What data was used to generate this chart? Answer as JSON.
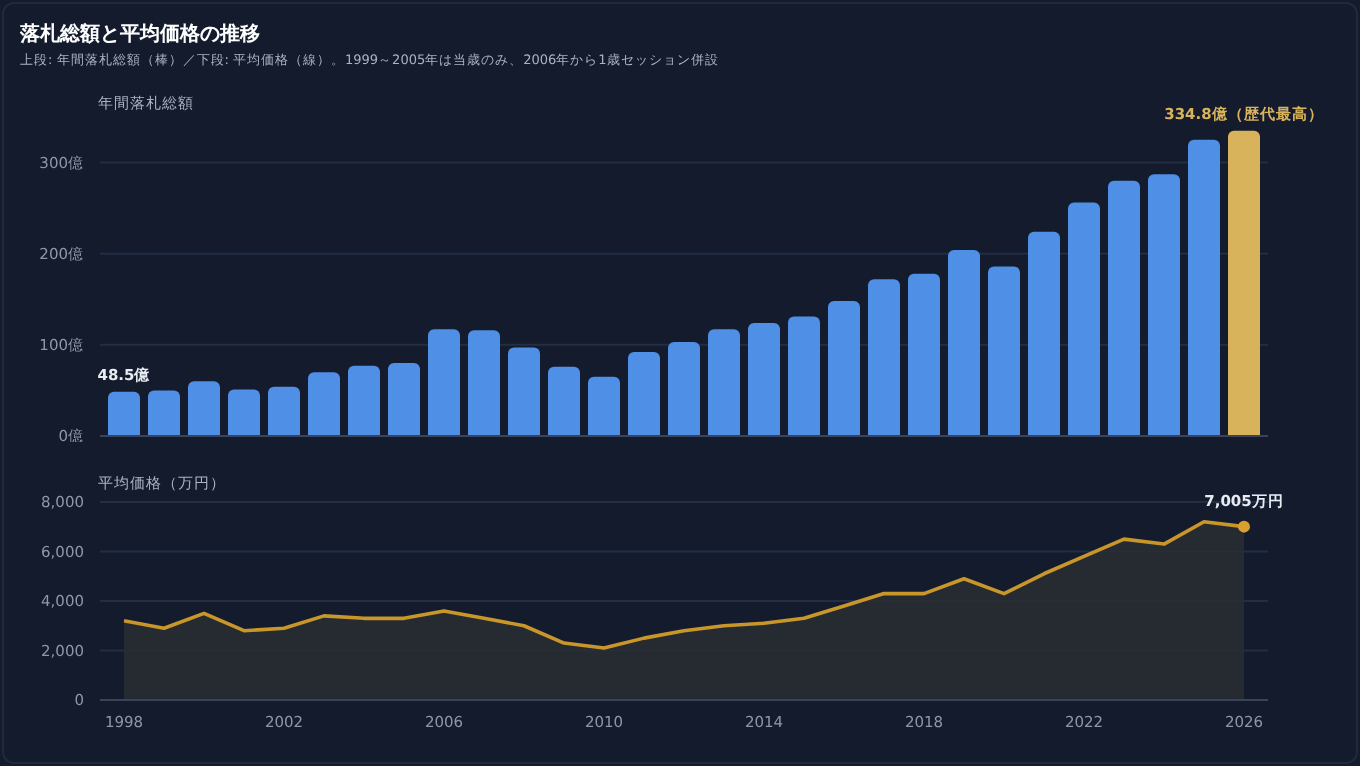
{
  "chart_data": [
    {
      "type": "bar",
      "title": "落札総額と平均価格の推移",
      "subtitle": "上段: 年間落札総額（棒）／下段: 平均価格（線）。1999～2005年は当歳のみ、2006年から1歳セッション併設",
      "ylabel": "年間落札総額",
      "x": [
        1998,
        1999,
        2000,
        2001,
        2002,
        2003,
        2004,
        2005,
        2006,
        2007,
        2008,
        2009,
        2010,
        2011,
        2012,
        2013,
        2014,
        2015,
        2016,
        2017,
        2018,
        2019,
        2020,
        2021,
        2022,
        2023,
        2024,
        2025,
        2026
      ],
      "series": [
        {
          "color": "#4f8fe6",
          "values": [
            48.5,
            50,
            60,
            51,
            54,
            70,
            77,
            80,
            117,
            116,
            97,
            76,
            65,
            92,
            103,
            117,
            124,
            131,
            148,
            172,
            178,
            204,
            186,
            224,
            256,
            280,
            287,
            325,
            334.8
          ],
          "colors": [
            "#4f8fe6",
            "#4f8fe6",
            "#4f8fe6",
            "#4f8fe6",
            "#4f8fe6",
            "#4f8fe6",
            "#4f8fe6",
            "#4f8fe6",
            "#4f8fe6",
            "#4f8fe6",
            "#4f8fe6",
            "#4f8fe6",
            "#4f8fe6",
            "#4f8fe6",
            "#4f8fe6",
            "#4f8fe6",
            "#4f8fe6",
            "#4f8fe6",
            "#4f8fe6",
            "#4f8fe6",
            "#4f8fe6",
            "#4f8fe6",
            "#4f8fe6",
            "#4f8fe6",
            "#4f8fe6",
            "#4f8fe6",
            "#4f8fe6",
            "#4f8fe6",
            "#d9b25c"
          ],
          "value_labels": [
            "48.5億",
            null,
            null,
            null,
            null,
            null,
            null,
            null,
            null,
            null,
            null,
            null,
            null,
            null,
            null,
            null,
            null,
            null,
            null,
            null,
            null,
            null,
            null,
            null,
            null,
            null,
            null,
            null,
            "334.8億（歴代最高）"
          ]
        }
      ],
      "xlim": [
        1997.4,
        2026.6
      ],
      "ylim": [
        0,
        340
      ],
      "yticks": [
        {
          "value": 0,
          "label": "0億"
        },
        {
          "value": 100,
          "label": "100億"
        },
        {
          "value": 200,
          "label": "200億"
        },
        {
          "value": 300,
          "label": "300億"
        }
      ],
      "tick_labels": "y",
      "grid": "y",
      "legend": false
    },
    {
      "type": "area",
      "ylabel": "平均価格（万円）",
      "x": [
        1998,
        1999,
        2000,
        2001,
        2002,
        2003,
        2004,
        2005,
        2006,
        2007,
        2008,
        2009,
        2010,
        2011,
        2012,
        2013,
        2014,
        2015,
        2016,
        2017,
        2018,
        2019,
        2020,
        2021,
        2022,
        2023,
        2024,
        2025,
        2026
      ],
      "series": [
        {
          "color": "#c9962a",
          "marker": "none",
          "values": [
            3200,
            2900,
            3500,
            2800,
            2900,
            3400,
            3300,
            3300,
            3600,
            3300,
            3000,
            2300,
            2100,
            2500,
            2800,
            3000,
            3100,
            3300,
            3800,
            4300,
            4300,
            4900,
            4300,
            5100,
            5800,
            6500,
            6300,
            7200,
            7005
          ]
        },
        {
          "type": "scatter",
          "marker": "circle",
          "color": "#d9a030",
          "x": [
            2026
          ],
          "values": [
            7005
          ],
          "value_labels": [
            "7,005万円"
          ]
        }
      ],
      "xlim": [
        1997.4,
        2026.6
      ],
      "ylim": [
        0,
        8000
      ],
      "xticks": [
        1998,
        2002,
        2006,
        2010,
        2014,
        2018,
        2022,
        2026
      ],
      "yticks": [
        0,
        {
          "value": 2000,
          "label": "2,000"
        },
        {
          "value": 4000,
          "label": "4,000"
        },
        {
          "value": 6000,
          "label": "6,000"
        },
        {
          "value": 8000,
          "label": "8,000"
        }
      ],
      "grid": "y",
      "legend": false
    }
  ]
}
